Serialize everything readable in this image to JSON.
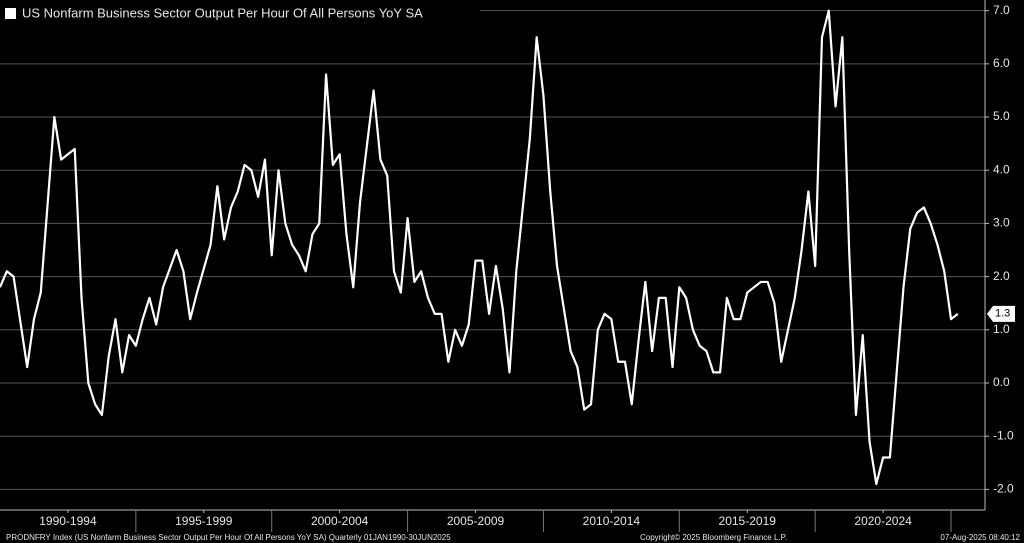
{
  "chart_data": {
    "type": "line",
    "series": [
      {
        "name": "US Nonfarm Business Sector Output Per Hour Of All Persons YoY SA",
        "color": "#ffffff",
        "x": [
          1990,
          1990.25,
          1990.5,
          1991,
          1991.25,
          1991.5,
          1992,
          1992.25,
          1992.5,
          1992.75,
          1993,
          1993.25,
          1993.5,
          1993.75,
          1994,
          1994.25,
          1994.5,
          1994.75,
          1995,
          1995.25,
          1995.5,
          1995.75,
          1996,
          1996.5,
          1996.75,
          1997,
          1997.25,
          1997.75,
          1998,
          1998.25,
          1998.5,
          1998.75,
          1999,
          1999.25,
          1999.5,
          1999.75,
          2000,
          2000.25,
          2000.5,
          2000.75,
          2001,
          2001.25,
          2001.5,
          2001.75,
          2002,
          2002.25,
          2002.5,
          2002.75,
          2003,
          2003.25,
          2003.75,
          2004,
          2004.25,
          2004.5,
          2004.75,
          2005,
          2005.25,
          2005.5,
          2005.75,
          2006,
          2006.25,
          2006.5,
          2006.75,
          2007,
          2007.25,
          2007.5,
          2007.75,
          2008,
          2008.25,
          2008.5,
          2008.75,
          2009,
          2009.5,
          2009.75,
          2010,
          2010.25,
          2010.5,
          2011,
          2011.25,
          2011.5,
          2011.75,
          2012,
          2012.25,
          2012.5,
          2012.75,
          2013,
          2013.25,
          2013.5,
          2013.75,
          2014,
          2014.25,
          2014.5,
          2014.75,
          2015,
          2015.25,
          2015.5,
          2015.75,
          2016,
          2016.25,
          2016.5,
          2016.75,
          2017,
          2017.25,
          2017.5,
          2017.75,
          2018,
          2018.25,
          2018.5,
          2018.75,
          2019,
          2019.25,
          2019.5,
          2019.75,
          2020,
          2020.25,
          2020.5,
          2020.75,
          2021,
          2021.25,
          2021.5,
          2021.75,
          2022,
          2022.25,
          2022.5,
          2022.75,
          2023,
          2023.25,
          2023.5,
          2023.75,
          2024,
          2024.25,
          2024.5,
          2024.75,
          2025,
          2025.25
        ],
        "values": [
          1.8,
          2.1,
          2.0,
          0.3,
          1.2,
          1.7,
          5.0,
          4.2,
          4.3,
          4.4,
          1.6,
          0.0,
          -0.4,
          -0.6,
          0.5,
          1.2,
          0.2,
          0.9,
          0.7,
          1.2,
          1.6,
          1.1,
          1.8,
          2.5,
          2.1,
          1.2,
          1.7,
          2.6,
          3.7,
          2.7,
          3.3,
          3.6,
          4.1,
          4.0,
          3.5,
          4.2,
          2.4,
          4.0,
          3.0,
          2.6,
          2.4,
          2.1,
          2.8,
          3.0,
          5.8,
          4.1,
          4.3,
          2.8,
          1.8,
          3.4,
          5.5,
          4.2,
          3.9,
          2.1,
          1.7,
          3.1,
          1.9,
          2.1,
          1.6,
          1.3,
          1.3,
          0.4,
          1.0,
          0.7,
          1.1,
          2.3,
          2.3,
          1.3,
          2.2,
          1.4,
          0.2,
          2.1,
          4.6,
          6.5,
          5.4,
          3.6,
          2.2,
          0.6,
          0.3,
          -0.5,
          -0.4,
          1.0,
          1.3,
          1.2,
          0.4,
          0.4,
          -0.4,
          0.8,
          1.9,
          0.6,
          1.6,
          1.6,
          0.3,
          1.8,
          1.6,
          1.0,
          0.7,
          0.6,
          0.2,
          0.2,
          1.6,
          1.2,
          1.2,
          1.7,
          1.8,
          1.9,
          1.9,
          1.5,
          0.4,
          1.0,
          1.6,
          2.5,
          3.6,
          2.2,
          6.5,
          7.0,
          5.2,
          6.5,
          2.5,
          -0.6,
          0.9,
          -1.1,
          -1.9,
          -1.4,
          -1.4,
          0.2,
          1.8,
          2.9,
          3.2,
          3.3,
          3.0,
          2.6,
          2.1,
          1.2,
          1.3
        ]
      }
    ],
    "xlim": [
      1990,
      2026.25
    ],
    "xticks": [
      {
        "value": 1992.5,
        "label": "1990-1994"
      },
      {
        "value": 1997.5,
        "label": "1995-1999"
      },
      {
        "value": 2002.5,
        "label": "2000-2004"
      },
      {
        "value": 2007.5,
        "label": "2005-2009"
      },
      {
        "value": 2012.5,
        "label": "2010-2014"
      },
      {
        "value": 2017.5,
        "label": "2015-2019"
      },
      {
        "value": 2022.5,
        "label": "2020-2024"
      }
    ],
    "ylim": [
      -2.35,
      7.2
    ],
    "yticks": [
      {
        "value": -2,
        "label": "-2.0"
      },
      {
        "value": -1,
        "label": "-1.0"
      },
      {
        "value": 0,
        "label": "0.0"
      },
      {
        "value": 1,
        "label": "1.0"
      },
      {
        "value": 2,
        "label": "2.0"
      },
      {
        "value": 3,
        "label": "3.0"
      },
      {
        "value": 4,
        "label": "4.0"
      },
      {
        "value": 5,
        "label": "5.0"
      },
      {
        "value": 6,
        "label": "6.0"
      },
      {
        "value": 7,
        "label": "7.0"
      }
    ],
    "grid": true,
    "legend": "top-left",
    "source": "PRODNFRY Index (US Nonfarm Business Sector Output Per Hour Of All Persons YoY SA)  Quarterly 01JAN1990-30JUN2025",
    "copyright": "Copyright© 2025 Bloomberg Finance L.P.",
    "timestamp": "07-Aug-2025 08:40:12"
  }
}
